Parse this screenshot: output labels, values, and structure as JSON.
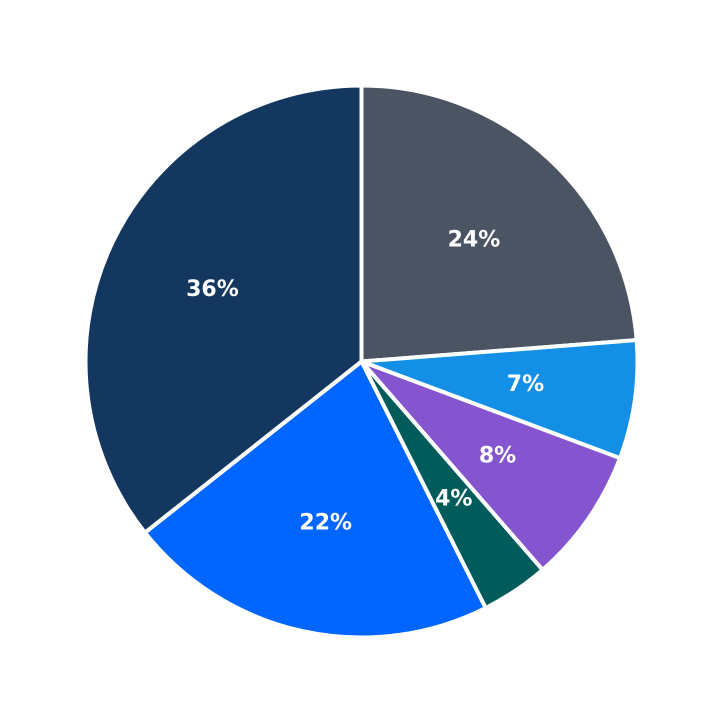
{
  "chart_data": {
    "type": "pie",
    "start_angle_deg": 90,
    "direction": "clockwise",
    "slices": [
      {
        "value": 24,
        "label": "24%",
        "color": "#4a5463"
      },
      {
        "value": 7,
        "label": "7%",
        "color": "#1390e6"
      },
      {
        "value": 8,
        "label": "8%",
        "color": "#8555cf"
      },
      {
        "value": 4,
        "label": "4%",
        "color": "#005c5a"
      },
      {
        "value": 22,
        "label": "22%",
        "color": "#0066ff"
      },
      {
        "value": 36,
        "label": "36%",
        "color": "#13375f"
      }
    ]
  }
}
